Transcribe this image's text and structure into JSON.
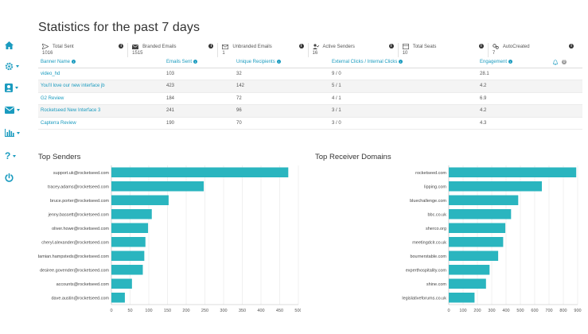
{
  "page": {
    "title": "Statistics for the past 7 days"
  },
  "sidebar": {
    "items": [
      {
        "icon": "home-icon",
        "dropdown": false
      },
      {
        "icon": "gear-icon",
        "dropdown": true
      },
      {
        "icon": "user-icon",
        "dropdown": true
      },
      {
        "icon": "envelope-icon",
        "dropdown": true
      },
      {
        "icon": "bar-chart-icon",
        "dropdown": true
      },
      {
        "icon": "question-icon",
        "dropdown": true
      },
      {
        "icon": "power-icon",
        "dropdown": false
      }
    ]
  },
  "stats": [
    {
      "icon": "send-icon",
      "label": "Total Sent",
      "value": "1016"
    },
    {
      "icon": "envelope-filled-icon",
      "label": "Branded Emails",
      "value": "1515"
    },
    {
      "icon": "envelope-outline-icon",
      "label": "Unbranded Emails",
      "value": "1"
    },
    {
      "icon": "user-check-icon",
      "label": "Active Senders",
      "value": "16"
    },
    {
      "icon": "seat-icon",
      "label": "Total Seats",
      "value": "10"
    },
    {
      "icon": "auto-icon",
      "label": "AutoCreated",
      "value": "7"
    }
  ],
  "table": {
    "columns": [
      "Banner Name",
      "Emails Sent",
      "Unique Recipients",
      "External Clicks / Internal Clicks",
      "Engagement"
    ],
    "badge": "0",
    "rows": [
      [
        "video_hd",
        "103",
        "32",
        "9 / 0",
        "28.1"
      ],
      [
        "You'll love our new interface jb",
        "423",
        "142",
        "5 / 1",
        "4.2"
      ],
      [
        "G2 Review",
        "184",
        "72",
        "4 / 1",
        "6.9"
      ],
      [
        "Rocketseed New Interface 3",
        "241",
        "96",
        "3 / 1",
        "4.2"
      ],
      [
        "Capterra Review",
        "190",
        "70",
        "3 / 0",
        "4.3"
      ]
    ]
  },
  "charts": {
    "senders_title": "Top Senders",
    "domains_title": "Top Receiver Domains"
  },
  "chart_data": [
    {
      "type": "bar",
      "orientation": "horizontal",
      "title": "Top Senders",
      "categories": [
        "support.uk@rocketseed.com",
        "tracey.adams@rocketseed.com",
        "bruce.porter@rocketseed.com",
        "jenny.bassett@rocketseed.com",
        "oliver.howe@rocketseed.com",
        "cheryl.alexander@rocketseed.com",
        "damian.hampsteds@rocketseed.com",
        "desiree.govender@rocketseed.com",
        "accounts@rocketseed.com",
        "dave.austin@rocketseed.com"
      ],
      "values": [
        473,
        247,
        153,
        108,
        98,
        91,
        88,
        84,
        55,
        36
      ],
      "xlim": [
        0,
        500
      ],
      "ticks": [
        0,
        50,
        100,
        150,
        200,
        250,
        300,
        350,
        400,
        450,
        500
      ],
      "color": "#2ab5bf",
      "grid": true
    },
    {
      "type": "bar",
      "orientation": "horizontal",
      "title": "Top Receiver Domains",
      "categories": [
        "rocketseed.com",
        "lipping.com",
        "bluechallenge.com",
        "bbc.co.uk",
        "sherco.org",
        "meetingdclr.co.uk",
        "bournerstable.com",
        "experthospitality.com",
        "shine.com",
        "legislativeforums.co.uk"
      ],
      "values": [
        890,
        650,
        485,
        435,
        395,
        380,
        345,
        285,
        260,
        180
      ],
      "xlim": [
        0,
        900
      ],
      "ticks": [
        0,
        100,
        200,
        300,
        400,
        500,
        600,
        700,
        800,
        900
      ],
      "color": "#2ab5bf",
      "grid": true
    }
  ]
}
